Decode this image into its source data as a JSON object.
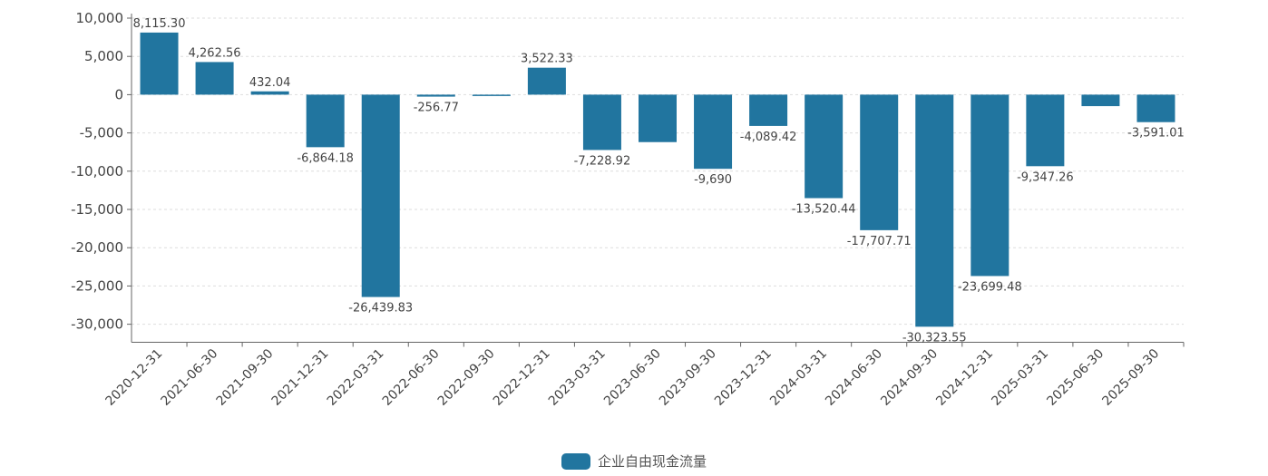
{
  "chart_data": {
    "type": "bar",
    "categories": [
      "2020-12-31",
      "2021-06-30",
      "2021-09-30",
      "2021-12-31",
      "2022-03-31",
      "2022-06-30",
      "2022-09-30",
      "2022-12-31",
      "2023-03-31",
      "2023-06-30",
      "2023-09-30",
      "2023-12-31",
      "2024-03-31",
      "2024-06-30",
      "2024-09-30",
      "2024-12-31",
      "2025-03-31",
      "2025-06-30",
      "2025-09-30"
    ],
    "series": [
      {
        "name": "企业自由现金流量",
        "values": [
          8115.3,
          4262.56,
          432.04,
          -6864.18,
          -26439.83,
          -256.77,
          -100,
          3522.33,
          -7228.92,
          -6200,
          -9690,
          -4089.42,
          -13520.44,
          -17707.71,
          -30323.55,
          -23699.48,
          -9347.26,
          -1500,
          -3591.01
        ],
        "labels": [
          "8,115.30",
          "4,262.56",
          "432.04",
          "-6,864.18",
          "-26,439.83",
          "-256.77",
          "",
          "3,522.33",
          "-7,228.92",
          "",
          "-9,690",
          "-4,089.42",
          "-13,520.44",
          "-17,707.71",
          "-30,323.55",
          "-23,699.48",
          "-9,347.26",
          "",
          "-3,591.01"
        ]
      }
    ],
    "yticks": [
      "10,000",
      "5,000",
      "0",
      "-5,000",
      "-10,000",
      "-15,000",
      "-20,000",
      "-25,000",
      "-30,000"
    ],
    "ytick_values": [
      10000,
      5000,
      0,
      -5000,
      -10000,
      -15000,
      -20000,
      -25000,
      -30000
    ],
    "ylim": [
      -32000,
      10000
    ],
    "grid": true,
    "legend": "bottom-center",
    "color": "#21759f"
  }
}
